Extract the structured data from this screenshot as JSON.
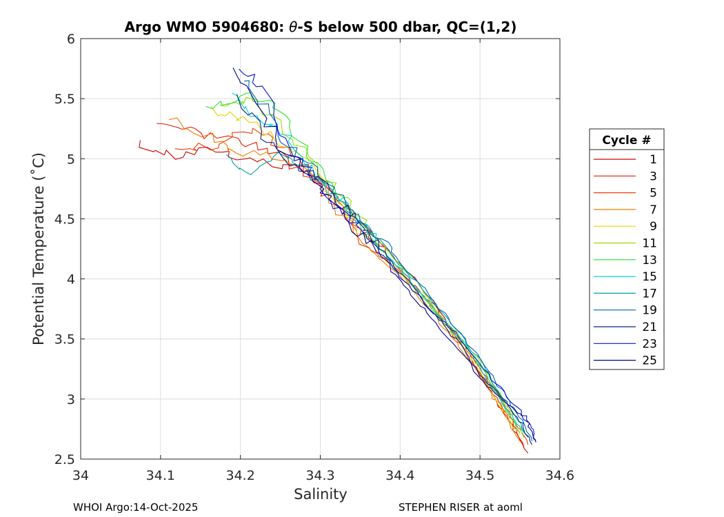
{
  "chart_data": {
    "type": "line",
    "title_prefix": "Argo WMO 5904680: ",
    "title_symbol": "θ",
    "title_suffix": "-S below 500 dbar,  QC=(1,2)",
    "xlabel": "Salinity",
    "ylabel": "Potential Temperature (˚C)",
    "xlim": [
      34,
      34.6
    ],
    "ylim": [
      2.5,
      6
    ],
    "xticks": [
      "34",
      "34.1",
      "34.2",
      "34.3",
      "34.4",
      "34.5",
      "34.6"
    ],
    "xtick_values": [
      34,
      34.1,
      34.2,
      34.3,
      34.4,
      34.5,
      34.6
    ],
    "yticks": [
      "2.5",
      "3",
      "3.5",
      "4",
      "4.5",
      "5",
      "5.5",
      "6"
    ],
    "ytick_values": [
      2.5,
      3,
      3.5,
      4,
      4.5,
      5,
      5.5,
      6
    ],
    "grid": true,
    "legend": {
      "title": "Cycle #",
      "position": "right",
      "entries": [
        "1",
        "3",
        "5",
        "7",
        "9",
        "11",
        "13",
        "15",
        "17",
        "19",
        "21",
        "23",
        "25"
      ]
    },
    "series": [
      {
        "name": "1",
        "color": "#cc0000",
        "x": [
          34.07,
          34.12,
          34.17,
          34.21,
          34.25,
          34.29,
          34.33,
          34.36,
          34.39,
          34.42,
          34.45,
          34.48,
          34.5,
          34.52,
          34.54,
          34.56
        ],
        "y": [
          5.12,
          5.02,
          5.08,
          5.0,
          4.95,
          4.85,
          4.62,
          4.4,
          4.2,
          4.0,
          3.72,
          3.45,
          3.2,
          2.98,
          2.78,
          2.55
        ]
      },
      {
        "name": "3",
        "color": "#e61a00",
        "x": [
          34.1,
          34.15,
          34.2,
          34.24,
          34.28,
          34.32,
          34.35,
          34.38,
          34.41,
          34.44,
          34.47,
          34.5,
          34.52,
          34.54,
          34.555
        ],
        "y": [
          5.3,
          5.2,
          5.15,
          5.05,
          4.88,
          4.65,
          4.45,
          4.22,
          4.0,
          3.8,
          3.52,
          3.25,
          3.02,
          2.82,
          2.6
        ]
      },
      {
        "name": "5",
        "color": "#f03c00",
        "x": [
          34.12,
          34.16,
          34.21,
          34.25,
          34.29,
          34.32,
          34.35,
          34.38,
          34.4,
          34.43,
          34.46,
          34.49,
          34.52,
          34.54,
          34.56
        ],
        "y": [
          5.05,
          5.1,
          5.25,
          5.12,
          4.9,
          4.7,
          4.3,
          4.18,
          4.05,
          3.85,
          3.6,
          3.3,
          3.05,
          2.85,
          2.62
        ]
      },
      {
        "name": "7",
        "color": "#f07800",
        "x": [
          34.11,
          34.16,
          34.19,
          34.23,
          34.27,
          34.31,
          34.34,
          34.37,
          34.4,
          34.43,
          34.46,
          34.49,
          34.51,
          34.53,
          34.55
        ],
        "y": [
          5.33,
          5.2,
          5.05,
          5.02,
          4.95,
          4.72,
          4.4,
          4.2,
          4.02,
          3.8,
          3.55,
          3.3,
          3.08,
          2.88,
          2.65
        ]
      },
      {
        "name": "9",
        "color": "#e6d200",
        "x": [
          34.16,
          34.2,
          34.24,
          34.28,
          34.31,
          34.34,
          34.37,
          34.4,
          34.43,
          34.46,
          34.49,
          34.51,
          34.53,
          34.55
        ],
        "y": [
          5.4,
          5.35,
          5.2,
          5.0,
          4.72,
          4.48,
          4.25,
          4.05,
          3.82,
          3.58,
          3.35,
          3.12,
          2.9,
          2.7
        ]
      },
      {
        "name": "11",
        "color": "#8ee000",
        "x": [
          34.18,
          34.21,
          34.25,
          34.29,
          34.32,
          34.35,
          34.38,
          34.41,
          34.44,
          34.47,
          34.5,
          34.52,
          34.54,
          34.555
        ],
        "y": [
          5.45,
          5.5,
          5.3,
          4.98,
          4.72,
          4.5,
          4.25,
          4.05,
          3.8,
          3.55,
          3.3,
          3.08,
          2.88,
          2.68
        ]
      },
      {
        "name": "13",
        "color": "#2ee02e",
        "x": [
          34.16,
          34.2,
          34.24,
          34.27,
          34.3,
          34.33,
          34.36,
          34.39,
          34.42,
          34.45,
          34.48,
          34.51,
          34.53,
          34.55
        ],
        "y": [
          5.4,
          5.55,
          5.45,
          5.2,
          4.9,
          4.6,
          4.35,
          4.15,
          3.92,
          3.68,
          3.45,
          3.18,
          2.95,
          2.72
        ]
      },
      {
        "name": "15",
        "color": "#00d2d2",
        "x": [
          34.19,
          34.22,
          34.25,
          34.28,
          34.31,
          34.34,
          34.37,
          34.4,
          34.43,
          34.46,
          34.49,
          34.51,
          34.53,
          34.555
        ],
        "y": [
          5.55,
          5.35,
          5.25,
          5.0,
          4.75,
          4.55,
          4.3,
          4.08,
          3.85,
          3.62,
          3.38,
          3.15,
          2.95,
          2.72
        ]
      },
      {
        "name": "17",
        "color": "#00a0a0",
        "x": [
          34.18,
          34.21,
          34.25,
          34.28,
          34.32,
          34.35,
          34.38,
          34.41,
          34.44,
          34.47,
          34.5,
          34.52,
          34.54,
          34.56
        ],
        "y": [
          5.0,
          4.9,
          5.05,
          4.92,
          4.68,
          4.48,
          4.28,
          4.05,
          3.82,
          3.58,
          3.32,
          3.1,
          2.9,
          2.68
        ]
      },
      {
        "name": "19",
        "color": "#0064b4",
        "x": [
          34.2,
          34.23,
          34.26,
          34.3,
          34.33,
          34.36,
          34.39,
          34.42,
          34.45,
          34.48,
          34.51,
          34.53,
          34.55,
          34.565
        ],
        "y": [
          5.65,
          5.45,
          5.1,
          4.85,
          4.62,
          4.42,
          4.22,
          4.0,
          3.75,
          3.5,
          3.25,
          3.05,
          2.85,
          2.65
        ]
      },
      {
        "name": "21",
        "color": "#002882",
        "x": [
          34.2,
          34.23,
          34.26,
          34.29,
          34.32,
          34.35,
          34.38,
          34.41,
          34.44,
          34.47,
          34.5,
          34.53,
          34.55,
          34.565
        ],
        "y": [
          5.5,
          5.2,
          4.95,
          4.9,
          4.65,
          4.45,
          4.22,
          3.98,
          3.72,
          3.5,
          3.2,
          3.0,
          2.82,
          2.62
        ]
      },
      {
        "name": "23",
        "color": "#0014d2",
        "x": [
          34.2,
          34.23,
          34.26,
          34.29,
          34.32,
          34.35,
          34.38,
          34.41,
          34.44,
          34.47,
          34.51,
          34.54,
          34.56,
          34.57
        ],
        "y": [
          5.75,
          5.6,
          5.05,
          4.88,
          4.6,
          4.42,
          4.18,
          3.95,
          3.72,
          3.55,
          3.2,
          2.98,
          2.82,
          2.65
        ]
      },
      {
        "name": "25",
        "color": "#00008c",
        "x": [
          34.19,
          34.22,
          34.25,
          34.28,
          34.31,
          34.34,
          34.37,
          34.4,
          34.43,
          34.46,
          34.5,
          34.53,
          34.56,
          34.57
        ],
        "y": [
          5.72,
          5.5,
          5.1,
          4.92,
          4.7,
          4.45,
          4.25,
          3.98,
          3.74,
          3.52,
          3.18,
          2.98,
          2.8,
          2.64
        ]
      }
    ]
  },
  "footer": {
    "left": "WHOI Argo:14-Oct-2025",
    "right": "STEPHEN RISER at aoml"
  }
}
